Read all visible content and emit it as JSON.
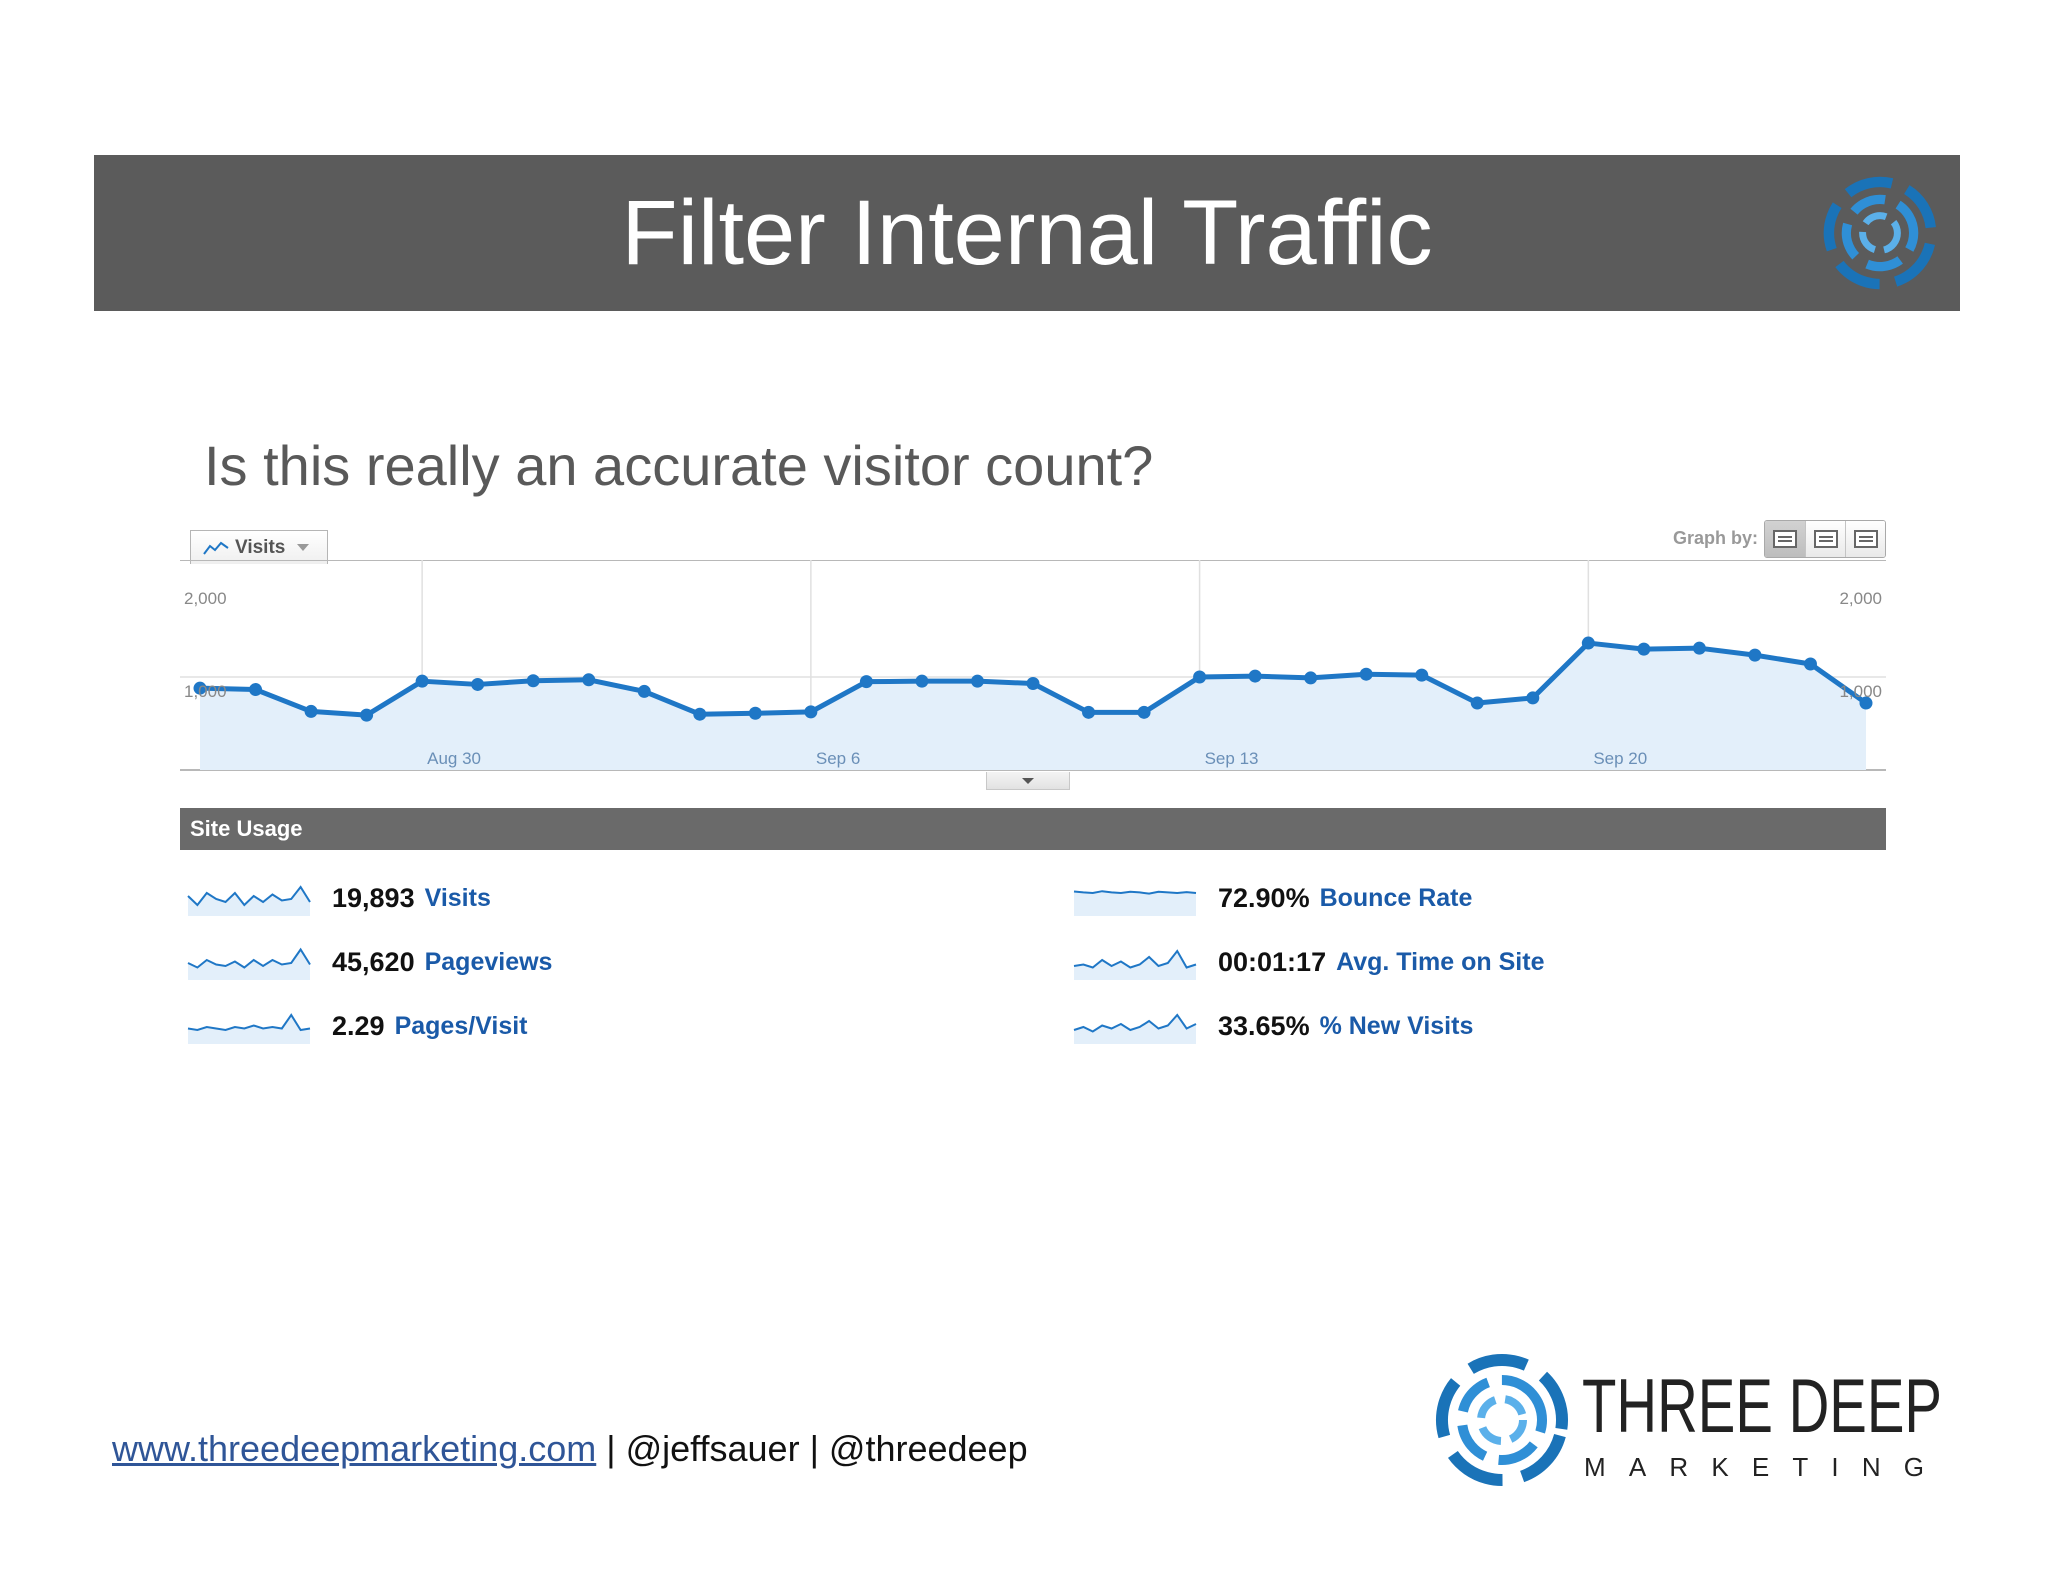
{
  "slide": {
    "title": "Filter Internal Traffic",
    "subtitle": "Is this really an accurate visitor count?"
  },
  "analytics": {
    "metric_tab": {
      "label": "Visits"
    },
    "graph_by": {
      "label": "Graph by:",
      "options": [
        "day-icon",
        "week-icon",
        "month-icon"
      ]
    },
    "site_usage": {
      "header": "Site Usage",
      "metrics": [
        {
          "value": "19,893",
          "label": "Visits",
          "spark": [
            0.6,
            0.3,
            0.7,
            0.5,
            0.4,
            0.7,
            0.3,
            0.6,
            0.4,
            0.65,
            0.45,
            0.5,
            0.9,
            0.4
          ]
        },
        {
          "value": "45,620",
          "label": "Pageviews",
          "spark": [
            0.5,
            0.35,
            0.6,
            0.45,
            0.4,
            0.55,
            0.35,
            0.6,
            0.4,
            0.6,
            0.45,
            0.5,
            0.95,
            0.45
          ]
        },
        {
          "value": "2.29",
          "label": "Pages/Visit",
          "spark": [
            0.45,
            0.4,
            0.5,
            0.45,
            0.4,
            0.5,
            0.45,
            0.55,
            0.45,
            0.5,
            0.45,
            0.9,
            0.4,
            0.45
          ]
        },
        {
          "value": "72.90%",
          "label": "Bounce Rate",
          "spark": [
            0.75,
            0.72,
            0.7,
            0.76,
            0.72,
            0.7,
            0.74,
            0.72,
            0.68,
            0.74,
            0.72,
            0.7,
            0.73,
            0.7
          ]
        },
        {
          "value": "00:01:17",
          "label": "Avg. Time on Site",
          "spark": [
            0.4,
            0.45,
            0.35,
            0.6,
            0.4,
            0.55,
            0.35,
            0.45,
            0.7,
            0.4,
            0.5,
            0.9,
            0.35,
            0.45
          ]
        },
        {
          "value": "33.65%",
          "label": "% New Visits",
          "spark": [
            0.4,
            0.5,
            0.35,
            0.55,
            0.45,
            0.6,
            0.4,
            0.5,
            0.7,
            0.45,
            0.55,
            0.9,
            0.45,
            0.6
          ]
        }
      ]
    }
  },
  "chart_data": {
    "type": "area",
    "series": [
      {
        "name": "Visits",
        "values": [
          880,
          865,
          630,
          590,
          955,
          920,
          960,
          970,
          845,
          600,
          610,
          625,
          950,
          955,
          955,
          930,
          620,
          620,
          1000,
          1010,
          990,
          1030,
          1020,
          720,
          775,
          1365,
          1300,
          1310,
          1235,
          1140,
          720
        ]
      }
    ],
    "x_labels": [
      "Aug 30",
      "Sep 6",
      "Sep 13",
      "Sep 20"
    ],
    "x_label_indices": [
      4,
      11,
      18,
      25
    ],
    "y_ticks": [
      "2,000",
      "1,000"
    ],
    "ylim": [
      0,
      2000
    ],
    "grid": true,
    "colors": {
      "line": "#1f77c6",
      "fill": "#e3effa"
    }
  },
  "footer": {
    "website": "www.threedeepmarketing.com",
    "handles": " | @jeffsauer | @threedeep"
  },
  "brand": {
    "name": "THREE DEEP",
    "tagline": "MARKETING",
    "accent": "#1a73b8"
  }
}
